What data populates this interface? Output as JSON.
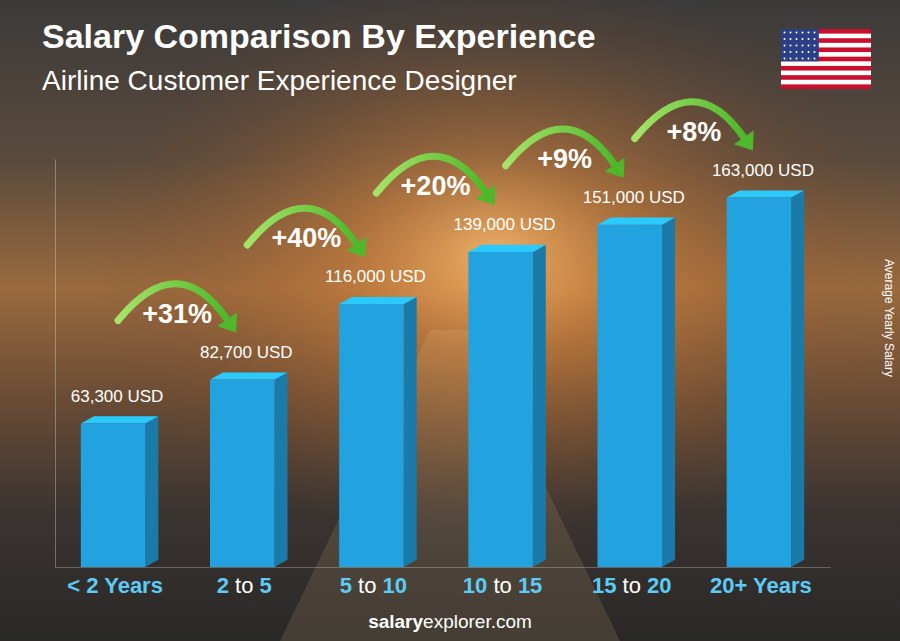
{
  "chart_data": {
    "type": "bar",
    "title": "Salary Comparison By Experience",
    "subtitle": "Airline Customer Experience Designer",
    "y_label": "Average Yearly Salary",
    "categories": [
      "< 2 Years",
      "2 to 5",
      "5 to 10",
      "10 to 15",
      "15 to 20",
      "20+ Years"
    ],
    "values": [
      63300,
      82700,
      116000,
      139000,
      151000,
      163000
    ],
    "value_labels": [
      "63,300 USD",
      "82,700 USD",
      "116,000 USD",
      "139,000 USD",
      "151,000 USD",
      "163,000 USD"
    ],
    "annotations": [
      "+31%",
      "+40%",
      "+20%",
      "+9%",
      "+8%"
    ],
    "source": [
      "salary",
      "explorer.com"
    ],
    "color": "#22a3e0",
    "ylim": [
      0,
      180000
    ],
    "data_labels": true,
    "tick_labels": "x"
  }
}
